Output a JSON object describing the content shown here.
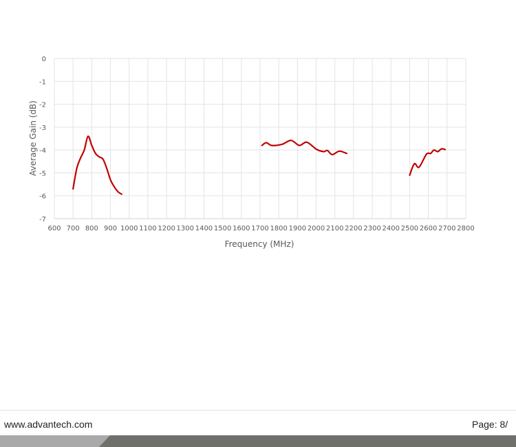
{
  "chart_data": {
    "type": "line",
    "title": "",
    "xlabel": "Frequency (MHz)",
    "ylabel": "Average Gain (dB)",
    "xlim": [
      600,
      2800
    ],
    "ylim": [
      -7,
      0
    ],
    "xticks": [
      600,
      700,
      800,
      900,
      1000,
      1100,
      1200,
      1300,
      1400,
      1500,
      1600,
      1700,
      1800,
      1900,
      2000,
      2100,
      2200,
      2300,
      2400,
      2500,
      2600,
      2700,
      2800
    ],
    "yticks": [
      0,
      -1,
      -2,
      -3,
      -4,
      -5,
      -6,
      -7
    ],
    "grid": true,
    "line_color": "#C00000",
    "segments": [
      {
        "x": [
          700,
          720,
          740,
          760,
          780,
          800,
          820,
          840,
          860,
          880,
          900,
          920,
          940,
          960
        ],
        "y": [
          -5.7,
          -4.8,
          -4.35,
          -4.0,
          -3.4,
          -3.8,
          -4.15,
          -4.3,
          -4.4,
          -4.8,
          -5.3,
          -5.6,
          -5.82,
          -5.93
        ]
      },
      {
        "x": [
          1710,
          1733,
          1763,
          1818,
          1866,
          1910,
          1950,
          2002,
          2040,
          2060,
          2086,
          2124,
          2163
        ],
        "y": [
          -3.8,
          -3.68,
          -3.8,
          -3.75,
          -3.58,
          -3.8,
          -3.66,
          -3.97,
          -4.07,
          -4.02,
          -4.2,
          -4.05,
          -4.15
        ]
      },
      {
        "x": [
          2500,
          2525,
          2550,
          2590,
          2612,
          2630,
          2650,
          2670,
          2690
        ],
        "y": [
          -5.1,
          -4.6,
          -4.75,
          -4.18,
          -4.15,
          -4.0,
          -4.07,
          -3.95,
          -3.98
        ]
      }
    ]
  },
  "footer": {
    "url": "www.advantech.com",
    "page": "Page: 8/"
  }
}
